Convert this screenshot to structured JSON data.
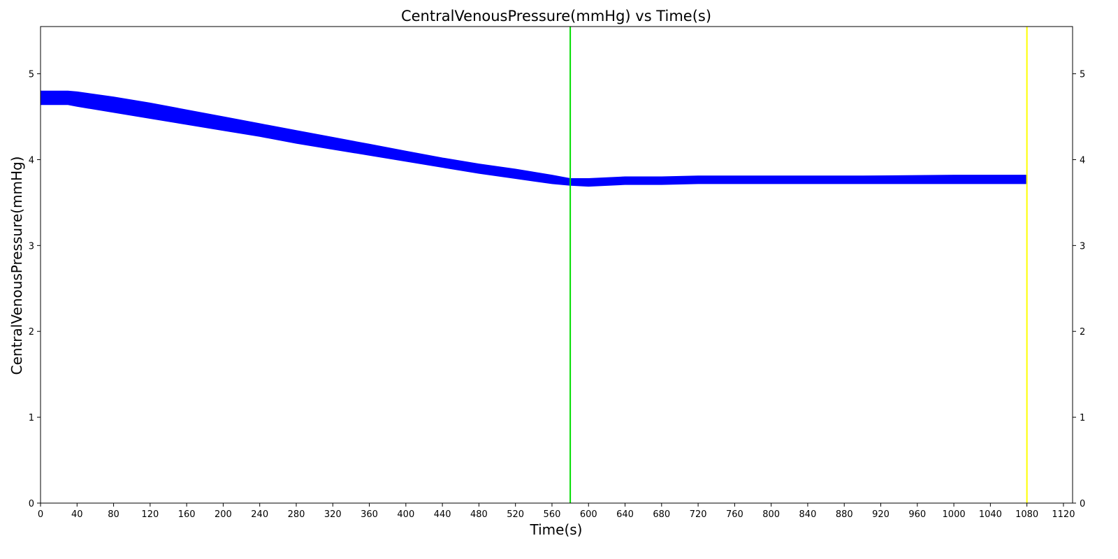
{
  "chart_data": {
    "type": "line",
    "title": "CentralVenousPressure(mmHg) vs Time(s)",
    "xlabel": "Time(s)",
    "ylabel": "CentralVenousPressure(mmHg)",
    "xlim": [
      0,
      1130
    ],
    "ylim": [
      0,
      5.55
    ],
    "xticks": [
      0,
      40,
      80,
      120,
      160,
      200,
      240,
      280,
      320,
      360,
      400,
      440,
      480,
      520,
      560,
      600,
      640,
      680,
      720,
      760,
      800,
      840,
      880,
      920,
      960,
      1000,
      1040,
      1080,
      1120
    ],
    "yticks": [
      0,
      1,
      2,
      3,
      4,
      5
    ],
    "right_axis_ticks": true,
    "grid": false,
    "series": [
      {
        "color": "#0000ff",
        "band": true,
        "x": [
          0,
          30,
          40,
          80,
          120,
          160,
          200,
          240,
          280,
          320,
          360,
          400,
          440,
          480,
          520,
          560,
          580,
          600,
          640,
          680,
          720,
          800,
          900,
          1000,
          1080
        ],
        "lower": [
          4.64,
          4.64,
          4.62,
          4.55,
          4.48,
          4.41,
          4.34,
          4.27,
          4.19,
          4.12,
          4.05,
          3.98,
          3.91,
          3.84,
          3.78,
          3.72,
          3.7,
          3.69,
          3.71,
          3.71,
          3.72,
          3.72,
          3.72,
          3.72,
          3.72
        ],
        "upper": [
          4.8,
          4.8,
          4.79,
          4.73,
          4.66,
          4.58,
          4.5,
          4.42,
          4.34,
          4.26,
          4.18,
          4.1,
          4.02,
          3.95,
          3.89,
          3.82,
          3.78,
          3.78,
          3.8,
          3.8,
          3.81,
          3.81,
          3.81,
          3.82,
          3.82
        ]
      }
    ],
    "vertical_lines": [
      {
        "x": 580,
        "color": "#00dd00"
      },
      {
        "x": 1080,
        "color": "#ffff00"
      }
    ]
  }
}
